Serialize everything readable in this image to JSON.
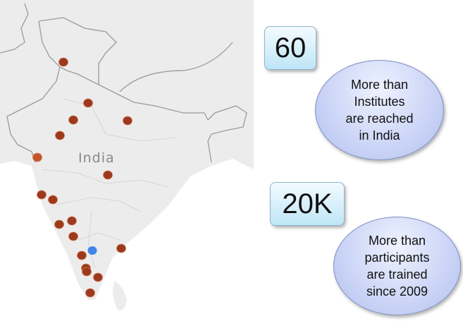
{
  "map": {
    "country_label": "India",
    "colors": {
      "land": "#ececec",
      "border": "#9a9a9a",
      "sea": "#ffffff",
      "marker": "#9b3a1e",
      "marker_highlight": "#3f86e8"
    },
    "marker_icon": "location-dot-icon"
  },
  "stats": [
    {
      "value": "60",
      "description_lines": [
        "More than",
        "Institutes",
        "are reached",
        "in India"
      ]
    },
    {
      "value": "20K",
      "description_lines": [
        "More than",
        "participants",
        "are trained",
        "since 2009"
      ]
    }
  ]
}
